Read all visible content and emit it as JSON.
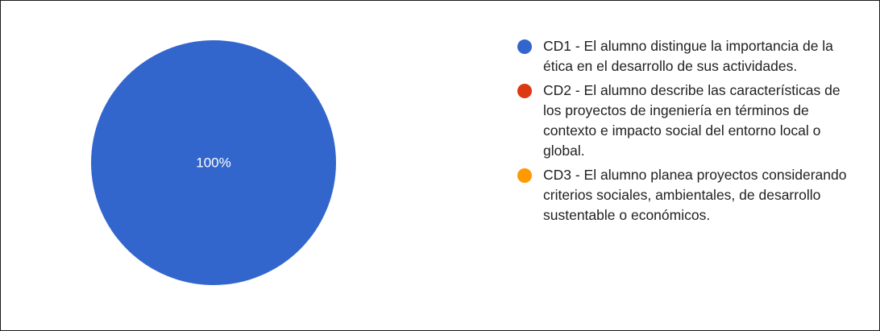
{
  "chart_data": {
    "type": "pie",
    "categories": [
      "CD1 - El alumno distingue la importancia de la ética en el desarrollo de sus actividades.",
      "CD2 - El alumno describe las características de los proyectos de ingeniería en términos de contexto e impacto social del entorno local o global.",
      "CD3 - El alumno planea proyectos considerando criterios sociales, ambientales, de desarrollo sustentable o económicos."
    ],
    "values": [
      100,
      0,
      0
    ],
    "slice_labels": [
      "100%",
      "",
      ""
    ],
    "colors": [
      "#3366cc",
      "#dc3912",
      "#ff9900"
    ],
    "legend_position": "right"
  }
}
